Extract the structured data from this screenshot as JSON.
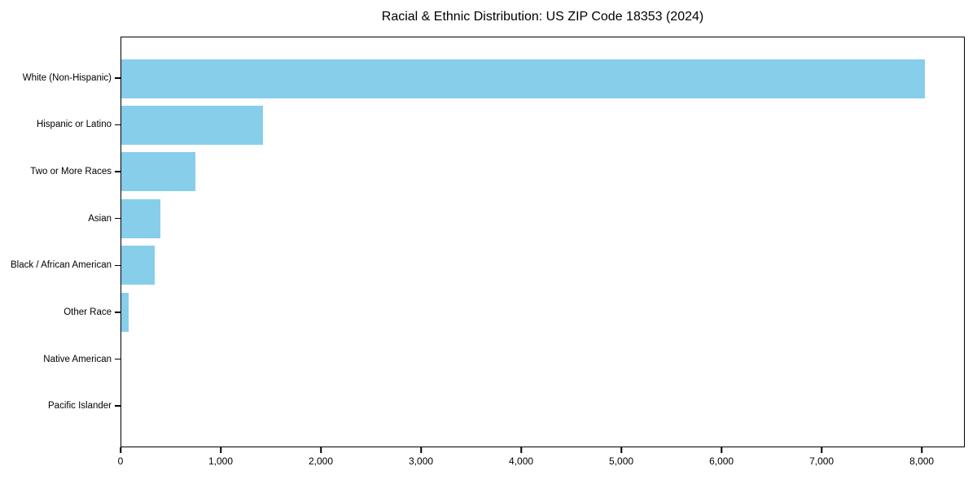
{
  "chart_data": {
    "type": "bar",
    "orientation": "horizontal",
    "title": "Racial & Ethnic Distribution: US ZIP Code 18353 (2024)",
    "categories": [
      "White (Non-Hispanic)",
      "Hispanic or Latino",
      "Two or More Races",
      "Asian",
      "Black / African American",
      "Other Race",
      "Native American",
      "Pacific Islander"
    ],
    "values": [
      8040,
      1415,
      740,
      390,
      335,
      70,
      0,
      0
    ],
    "xlabel": "",
    "ylabel": "",
    "xlim": [
      0,
      8430
    ],
    "xticks": [
      0,
      1000,
      2000,
      3000,
      4000,
      5000,
      6000,
      7000,
      8000
    ],
    "xtick_labels": [
      "0",
      "1,000",
      "2,000",
      "3,000",
      "4,000",
      "5,000",
      "6,000",
      "7,000",
      "8,000"
    ],
    "bar_color": "#87CEEB",
    "text_color": "#000000",
    "grid": false,
    "legend": "none"
  }
}
